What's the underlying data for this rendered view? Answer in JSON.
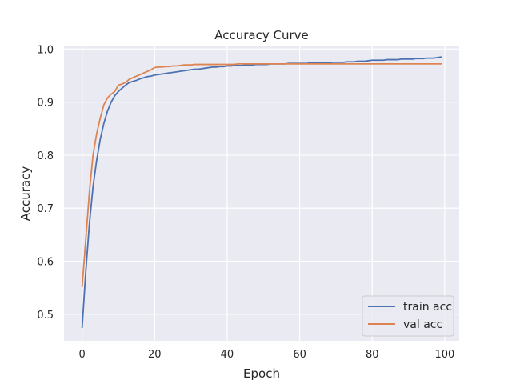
{
  "chart_data": {
    "type": "line",
    "title": "Accuracy Curve",
    "xlabel": "Epoch",
    "ylabel": "Accuracy",
    "xlim": [
      -5,
      104
    ],
    "ylim": [
      0.45,
      1.005
    ],
    "xticks": [
      0,
      20,
      40,
      60,
      80,
      100
    ],
    "xtick_labels": [
      "0",
      "20",
      "40",
      "60",
      "80",
      "100"
    ],
    "yticks": [
      0.5,
      0.6,
      0.7,
      0.8,
      0.9,
      1.0
    ],
    "ytick_labels": [
      "0.5",
      "0.6",
      "0.7",
      "0.8",
      "0.9",
      "1.0"
    ],
    "grid": true,
    "legend_position": "bottom-right",
    "background": "#eaeaf2",
    "series": [
      {
        "name": "train acc",
        "color": "#4c72b0",
        "x": [
          0,
          1,
          2,
          3,
          4,
          5,
          6,
          7,
          8,
          9,
          10,
          11,
          12,
          13,
          14,
          15,
          16,
          17,
          18,
          19,
          20,
          21,
          22,
          23,
          24,
          25,
          26,
          27,
          28,
          29,
          30,
          31,
          32,
          33,
          34,
          35,
          36,
          37,
          38,
          39,
          40,
          41,
          42,
          43,
          44,
          45,
          46,
          47,
          48,
          49,
          50,
          51,
          52,
          53,
          54,
          55,
          56,
          57,
          58,
          59,
          60,
          61,
          62,
          63,
          64,
          65,
          66,
          67,
          68,
          69,
          70,
          71,
          72,
          73,
          74,
          75,
          76,
          77,
          78,
          79,
          80,
          81,
          82,
          83,
          84,
          85,
          86,
          87,
          88,
          89,
          90,
          91,
          92,
          93,
          94,
          95,
          96,
          97,
          98,
          99
        ],
        "values": [
          0.475,
          0.58,
          0.67,
          0.74,
          0.79,
          0.83,
          0.86,
          0.883,
          0.9,
          0.912,
          0.92,
          0.926,
          0.932,
          0.937,
          0.939,
          0.941,
          0.944,
          0.946,
          0.948,
          0.949,
          0.951,
          0.952,
          0.953,
          0.954,
          0.955,
          0.956,
          0.957,
          0.958,
          0.959,
          0.96,
          0.961,
          0.962,
          0.962,
          0.963,
          0.964,
          0.965,
          0.966,
          0.966,
          0.967,
          0.967,
          0.968,
          0.968,
          0.969,
          0.969,
          0.969,
          0.97,
          0.97,
          0.97,
          0.971,
          0.971,
          0.971,
          0.971,
          0.972,
          0.972,
          0.972,
          0.972,
          0.972,
          0.973,
          0.973,
          0.973,
          0.973,
          0.973,
          0.973,
          0.974,
          0.974,
          0.974,
          0.974,
          0.974,
          0.974,
          0.975,
          0.975,
          0.975,
          0.975,
          0.976,
          0.976,
          0.976,
          0.977,
          0.977,
          0.977,
          0.978,
          0.979,
          0.979,
          0.979,
          0.979,
          0.98,
          0.98,
          0.98,
          0.98,
          0.981,
          0.981,
          0.981,
          0.981,
          0.982,
          0.982,
          0.982,
          0.983,
          0.983,
          0.983,
          0.984,
          0.985
        ]
      },
      {
        "name": "val acc",
        "color": "#dd8452",
        "x": [
          0,
          1,
          2,
          3,
          4,
          5,
          6,
          7,
          8,
          9,
          10,
          11,
          12,
          13,
          14,
          15,
          16,
          17,
          18,
          19,
          20,
          21,
          22,
          23,
          24,
          25,
          26,
          27,
          28,
          29,
          30,
          31,
          32,
          33,
          34,
          35,
          36,
          37,
          38,
          39,
          40,
          41,
          42,
          43,
          44,
          45,
          46,
          47,
          48,
          49,
          50,
          51,
          52,
          53,
          54,
          55,
          56,
          57,
          58,
          59,
          60,
          61,
          62,
          63,
          64,
          65,
          66,
          67,
          68,
          69,
          70,
          71,
          72,
          73,
          74,
          75,
          76,
          77,
          78,
          79,
          80,
          81,
          82,
          83,
          84,
          85,
          86,
          87,
          88,
          89,
          90,
          91,
          92,
          93,
          94,
          95,
          96,
          97,
          98,
          99
        ],
        "values": [
          0.552,
          0.64,
          0.73,
          0.8,
          0.84,
          0.87,
          0.895,
          0.908,
          0.915,
          0.92,
          0.932,
          0.934,
          0.937,
          0.943,
          0.946,
          0.949,
          0.952,
          0.955,
          0.958,
          0.961,
          0.965,
          0.966,
          0.966,
          0.967,
          0.967,
          0.968,
          0.968,
          0.969,
          0.97,
          0.97,
          0.97,
          0.971,
          0.971,
          0.971,
          0.971,
          0.971,
          0.971,
          0.971,
          0.971,
          0.971,
          0.971,
          0.971,
          0.971,
          0.972,
          0.972,
          0.972,
          0.972,
          0.972,
          0.972,
          0.972,
          0.972,
          0.972,
          0.972,
          0.972,
          0.972,
          0.972,
          0.972,
          0.972,
          0.972,
          0.972,
          0.972,
          0.972,
          0.972,
          0.972,
          0.972,
          0.972,
          0.972,
          0.972,
          0.972,
          0.972,
          0.972,
          0.972,
          0.972,
          0.972,
          0.972,
          0.972,
          0.972,
          0.972,
          0.972,
          0.972,
          0.972,
          0.972,
          0.972,
          0.972,
          0.972,
          0.972,
          0.972,
          0.972,
          0.972,
          0.972,
          0.972,
          0.972,
          0.972,
          0.972,
          0.972,
          0.972,
          0.972,
          0.972,
          0.972,
          0.972
        ]
      }
    ]
  }
}
